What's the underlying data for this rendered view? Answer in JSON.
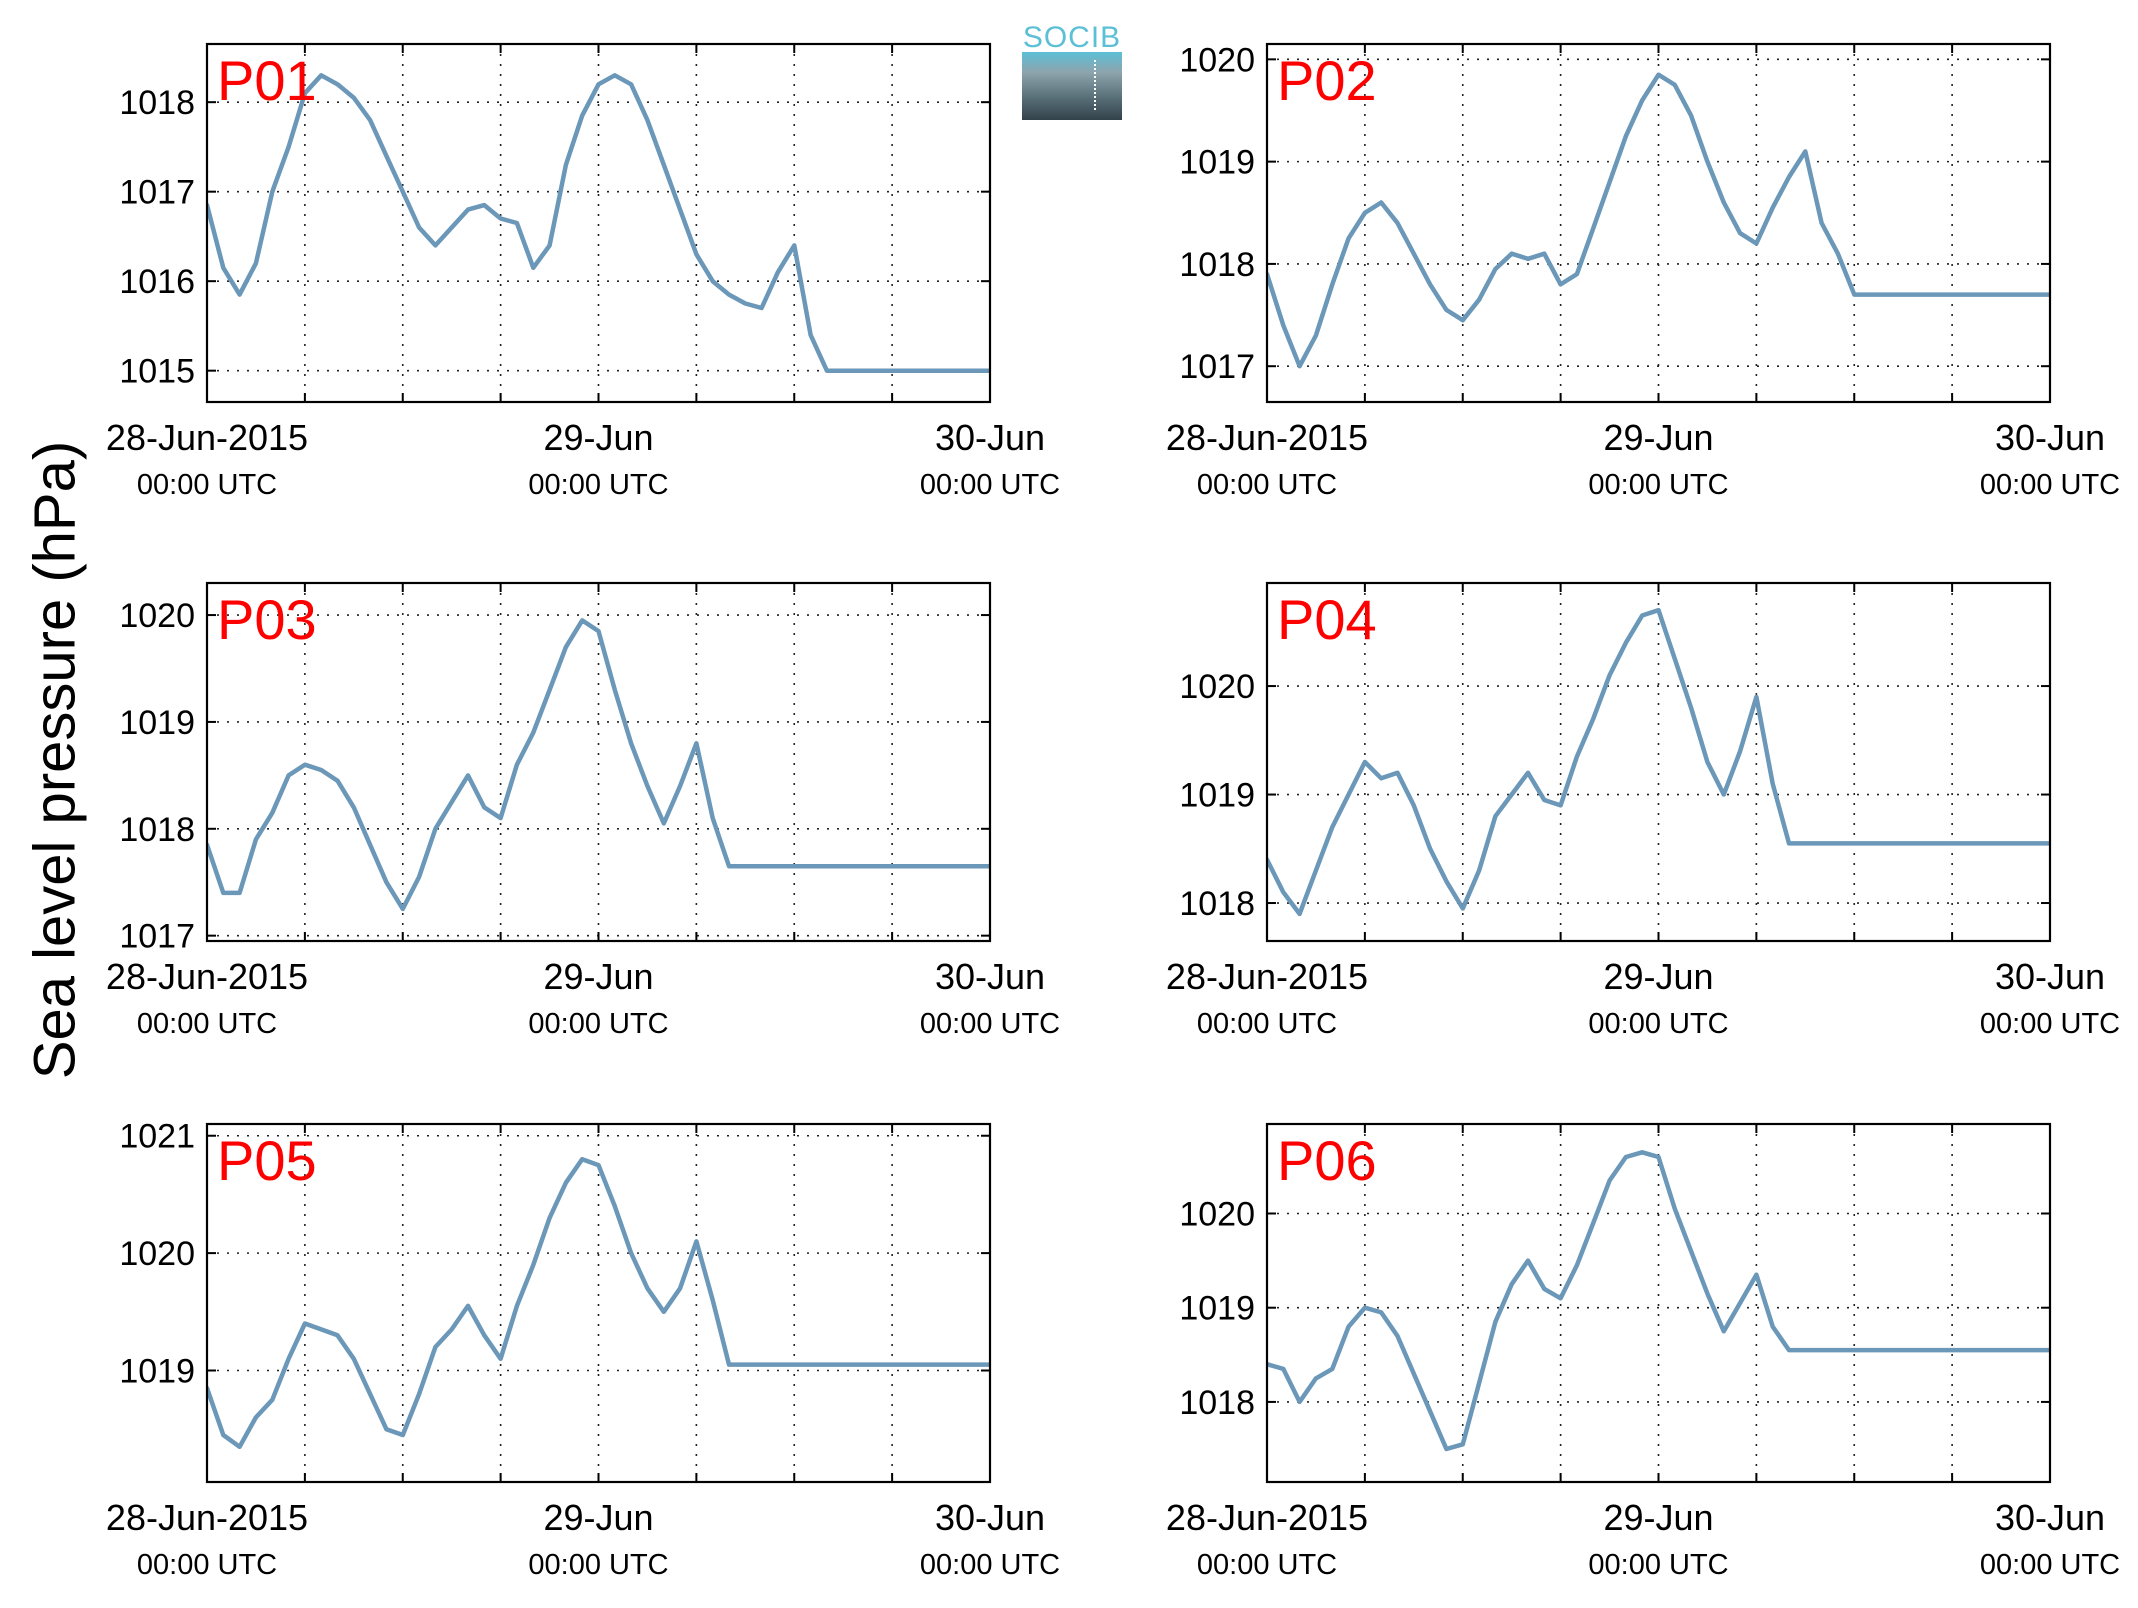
{
  "figure": {
    "ylabel": "Sea level pressure (hPa)",
    "logo_text": "SOCIB",
    "line_color": "#6b97b8",
    "label_color": "#ff0000",
    "grid": true,
    "x_tick_labels": [
      {
        "date": "28-Jun-2015",
        "time": "00:00 UTC"
      },
      {
        "date": "29-Jun",
        "time": "00:00 UTC"
      },
      {
        "date": "30-Jun",
        "time": "00:00 UTC"
      }
    ]
  },
  "chart_data": [
    {
      "type": "line",
      "label": "P01",
      "xlabel": "",
      "ylabel": "",
      "x_unit": "hours since 28-Jun-2015 00:00 UTC",
      "xlim": [
        0,
        48
      ],
      "ylim": [
        1014.65,
        1018.65
      ],
      "yticks": [
        1015,
        1016,
        1017,
        1018
      ],
      "x": [
        0,
        1,
        2,
        3,
        4,
        5,
        6,
        7,
        8,
        9,
        10,
        11,
        12,
        13,
        14,
        15,
        16,
        17,
        18,
        19,
        20,
        21,
        22,
        23,
        24,
        25,
        26,
        27,
        28,
        29,
        30,
        31,
        32,
        33,
        34,
        35,
        36,
        37,
        38,
        39,
        40,
        41,
        42,
        43,
        44,
        45,
        46,
        47,
        48
      ],
      "values": [
        1016.85,
        1016.15,
        1015.85,
        1016.2,
        1017.0,
        1017.5,
        1018.1,
        1018.3,
        1018.2,
        1018.05,
        1017.8,
        1017.4,
        1017.0,
        1016.6,
        1016.4,
        1016.6,
        1016.8,
        1016.85,
        1016.7,
        1016.65,
        1016.15,
        1016.4,
        1017.3,
        1017.85,
        1018.2,
        1018.3,
        1018.2,
        1017.8,
        1017.3,
        1016.8,
        1016.3,
        1016.0,
        1015.85,
        1015.75,
        1015.7,
        1016.1,
        1016.4,
        1015.4,
        1015.0,
        1015.0,
        1015.0,
        1015.0,
        1015.0,
        1015.0,
        1015.0,
        1015.0,
        1015.0,
        1015.0,
        1015.0
      ]
    },
    {
      "type": "line",
      "label": "P02",
      "xlabel": "",
      "ylabel": "",
      "x_unit": "hours since 28-Jun-2015 00:00 UTC",
      "xlim": [
        0,
        48
      ],
      "ylim": [
        1016.65,
        1020.15
      ],
      "yticks": [
        1017,
        1018,
        1019,
        1020
      ],
      "x": [
        0,
        1,
        2,
        3,
        4,
        5,
        6,
        7,
        8,
        9,
        10,
        11,
        12,
        13,
        14,
        15,
        16,
        17,
        18,
        19,
        20,
        21,
        22,
        23,
        24,
        25,
        26,
        27,
        28,
        29,
        30,
        31,
        32,
        33,
        34,
        35,
        36,
        37,
        38,
        39,
        40,
        41,
        42,
        43,
        44,
        45,
        46,
        47,
        48
      ],
      "values": [
        1017.9,
        1017.4,
        1017.0,
        1017.3,
        1017.8,
        1018.25,
        1018.5,
        1018.6,
        1018.4,
        1018.1,
        1017.8,
        1017.55,
        1017.45,
        1017.65,
        1017.95,
        1018.1,
        1018.05,
        1018.1,
        1017.8,
        1017.9,
        1018.35,
        1018.8,
        1019.25,
        1019.6,
        1019.85,
        1019.75,
        1019.45,
        1019.0,
        1018.6,
        1018.3,
        1018.2,
        1018.55,
        1018.85,
        1019.1,
        1018.4,
        1018.1,
        1017.7,
        1017.7,
        1017.7,
        1017.7,
        1017.7,
        1017.7,
        1017.7,
        1017.7,
        1017.7,
        1017.7,
        1017.7,
        1017.7,
        1017.7
      ]
    },
    {
      "type": "line",
      "label": "P03",
      "xlabel": "",
      "ylabel": "",
      "x_unit": "hours since 28-Jun-2015 00:00 UTC",
      "xlim": [
        0,
        48
      ],
      "ylim": [
        1016.95,
        1020.3
      ],
      "yticks": [
        1017,
        1018,
        1019,
        1020
      ],
      "x": [
        0,
        1,
        2,
        3,
        4,
        5,
        6,
        7,
        8,
        9,
        10,
        11,
        12,
        13,
        14,
        15,
        16,
        17,
        18,
        19,
        20,
        21,
        22,
        23,
        24,
        25,
        26,
        27,
        28,
        29,
        30,
        31,
        32,
        33,
        34,
        35,
        36,
        37,
        38,
        39,
        40,
        41,
        42,
        43,
        44,
        45,
        46,
        47,
        48
      ],
      "values": [
        1017.85,
        1017.4,
        1017.4,
        1017.9,
        1018.15,
        1018.5,
        1018.6,
        1018.55,
        1018.45,
        1018.2,
        1017.85,
        1017.5,
        1017.25,
        1017.55,
        1018.0,
        1018.25,
        1018.5,
        1018.2,
        1018.1,
        1018.6,
        1018.9,
        1019.3,
        1019.7,
        1019.95,
        1019.85,
        1019.3,
        1018.8,
        1018.4,
        1018.05,
        1018.4,
        1018.8,
        1018.1,
        1017.65,
        1017.65,
        1017.65,
        1017.65,
        1017.65,
        1017.65,
        1017.65,
        1017.65,
        1017.65,
        1017.65,
        1017.65,
        1017.65,
        1017.65,
        1017.65,
        1017.65,
        1017.65,
        1017.65
      ]
    },
    {
      "type": "line",
      "label": "P04",
      "xlabel": "",
      "ylabel": "",
      "x_unit": "hours since 28-Jun-2015 00:00 UTC",
      "xlim": [
        0,
        48
      ],
      "ylim": [
        1017.65,
        1020.95
      ],
      "yticks": [
        1018,
        1019,
        1020
      ],
      "x": [
        0,
        1,
        2,
        3,
        4,
        5,
        6,
        7,
        8,
        9,
        10,
        11,
        12,
        13,
        14,
        15,
        16,
        17,
        18,
        19,
        20,
        21,
        22,
        23,
        24,
        25,
        26,
        27,
        28,
        29,
        30,
        31,
        32,
        33,
        34,
        35,
        36,
        37,
        38,
        39,
        40,
        41,
        42,
        43,
        44,
        45,
        46,
        47,
        48
      ],
      "values": [
        1018.4,
        1018.1,
        1017.9,
        1018.3,
        1018.7,
        1019.0,
        1019.3,
        1019.15,
        1019.2,
        1018.9,
        1018.5,
        1018.2,
        1017.95,
        1018.3,
        1018.8,
        1019.0,
        1019.2,
        1018.95,
        1018.9,
        1019.35,
        1019.7,
        1020.1,
        1020.4,
        1020.65,
        1020.7,
        1020.25,
        1019.8,
        1019.3,
        1019.0,
        1019.4,
        1019.9,
        1019.1,
        1018.55,
        1018.55,
        1018.55,
        1018.55,
        1018.55,
        1018.55,
        1018.55,
        1018.55,
        1018.55,
        1018.55,
        1018.55,
        1018.55,
        1018.55,
        1018.55,
        1018.55,
        1018.55,
        1018.55
      ]
    },
    {
      "type": "line",
      "label": "P05",
      "xlabel": "",
      "ylabel": "",
      "x_unit": "hours since 28-Jun-2015 00:00 UTC",
      "xlim": [
        0,
        48
      ],
      "ylim": [
        1018.05,
        1021.1
      ],
      "yticks": [
        1019,
        1020,
        1021
      ],
      "x": [
        0,
        1,
        2,
        3,
        4,
        5,
        6,
        7,
        8,
        9,
        10,
        11,
        12,
        13,
        14,
        15,
        16,
        17,
        18,
        19,
        20,
        21,
        22,
        23,
        24,
        25,
        26,
        27,
        28,
        29,
        30,
        31,
        32,
        33,
        34,
        35,
        36,
        37,
        38,
        39,
        40,
        41,
        42,
        43,
        44,
        45,
        46,
        47,
        48
      ],
      "values": [
        1018.85,
        1018.45,
        1018.35,
        1018.6,
        1018.75,
        1019.1,
        1019.4,
        1019.35,
        1019.3,
        1019.1,
        1018.8,
        1018.5,
        1018.45,
        1018.8,
        1019.2,
        1019.35,
        1019.55,
        1019.3,
        1019.1,
        1019.55,
        1019.9,
        1020.3,
        1020.6,
        1020.8,
        1020.75,
        1020.4,
        1020.0,
        1019.7,
        1019.5,
        1019.7,
        1020.1,
        1019.6,
        1019.05,
        1019.05,
        1019.05,
        1019.05,
        1019.05,
        1019.05,
        1019.05,
        1019.05,
        1019.05,
        1019.05,
        1019.05,
        1019.05,
        1019.05,
        1019.05,
        1019.05,
        1019.05,
        1019.05
      ]
    },
    {
      "type": "line",
      "label": "P06",
      "xlabel": "",
      "ylabel": "",
      "x_unit": "hours since 28-Jun-2015 00:00 UTC",
      "xlim": [
        0,
        48
      ],
      "ylim": [
        1017.15,
        1020.95
      ],
      "yticks": [
        1018,
        1019,
        1020
      ],
      "x": [
        0,
        1,
        2,
        3,
        4,
        5,
        6,
        7,
        8,
        9,
        10,
        11,
        12,
        13,
        14,
        15,
        16,
        17,
        18,
        19,
        20,
        21,
        22,
        23,
        24,
        25,
        26,
        27,
        28,
        29,
        30,
        31,
        32,
        33,
        34,
        35,
        36,
        37,
        38,
        39,
        40,
        41,
        42,
        43,
        44,
        45,
        46,
        47,
        48
      ],
      "values": [
        1018.4,
        1018.35,
        1018.0,
        1018.25,
        1018.35,
        1018.8,
        1019.0,
        1018.95,
        1018.7,
        1018.3,
        1017.9,
        1017.5,
        1017.55,
        1018.2,
        1018.85,
        1019.25,
        1019.5,
        1019.2,
        1019.1,
        1019.45,
        1019.9,
        1020.35,
        1020.6,
        1020.65,
        1020.6,
        1020.05,
        1019.6,
        1019.15,
        1018.75,
        1019.05,
        1019.35,
        1018.8,
        1018.55,
        1018.55,
        1018.55,
        1018.55,
        1018.55,
        1018.55,
        1018.55,
        1018.55,
        1018.55,
        1018.55,
        1018.55,
        1018.55,
        1018.55,
        1018.55,
        1018.55,
        1018.55,
        1018.55
      ]
    }
  ]
}
